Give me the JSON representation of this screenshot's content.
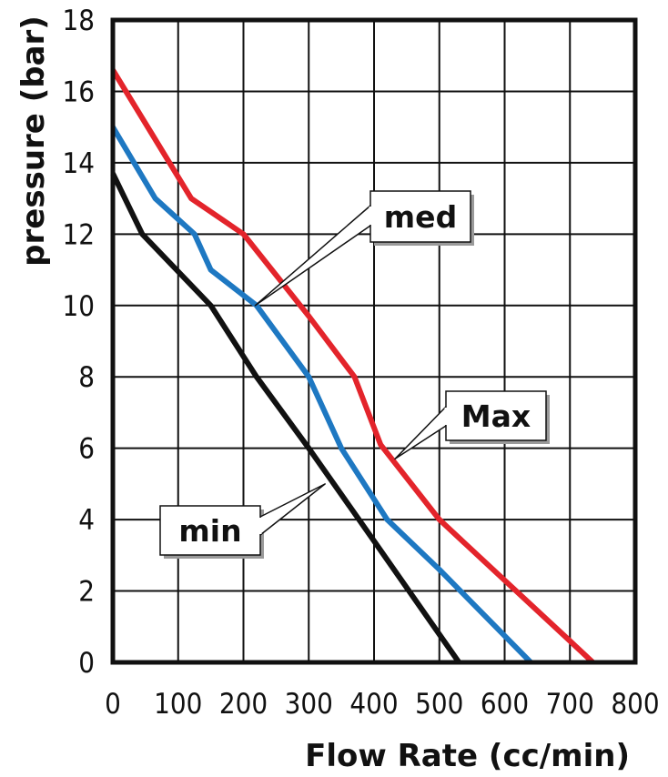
{
  "chart_data": {
    "type": "line",
    "title": "",
    "xlabel": "Flow Rate (cc/min)",
    "ylabel": "pressure (bar)",
    "xlim": [
      0,
      800
    ],
    "ylim": [
      0,
      18
    ],
    "x_ticks": [
      0,
      100,
      200,
      300,
      400,
      500,
      600,
      700,
      800
    ],
    "y_ticks": [
      0,
      2,
      4,
      6,
      8,
      10,
      12,
      14,
      16,
      18
    ],
    "grid": true,
    "legend": "callout labels",
    "series": [
      {
        "name": "Max",
        "color": "#e3242b",
        "points": [
          [
            0,
            16.6
          ],
          [
            60,
            14.8
          ],
          [
            120,
            13.0
          ],
          [
            200,
            12.0
          ],
          [
            300,
            9.7
          ],
          [
            370,
            8.0
          ],
          [
            410,
            6.1
          ],
          [
            500,
            4.0
          ],
          [
            600,
            2.3
          ],
          [
            700,
            0.6
          ],
          [
            735,
            0
          ]
        ]
      },
      {
        "name": "med",
        "color": "#1e78c2",
        "points": [
          [
            0,
            15.0
          ],
          [
            65,
            13.0
          ],
          [
            125,
            12.0
          ],
          [
            150,
            11.0
          ],
          [
            220,
            10.0
          ],
          [
            300,
            8.0
          ],
          [
            350,
            6.0
          ],
          [
            420,
            4.0
          ],
          [
            500,
            2.6
          ],
          [
            640,
            0
          ]
        ]
      },
      {
        "name": "min",
        "color": "#111111",
        "points": [
          [
            0,
            13.7
          ],
          [
            45,
            12.0
          ],
          [
            150,
            10.0
          ],
          [
            220,
            8.0
          ],
          [
            300,
            6.0
          ],
          [
            400,
            3.4
          ],
          [
            530,
            0
          ]
        ]
      }
    ]
  }
}
